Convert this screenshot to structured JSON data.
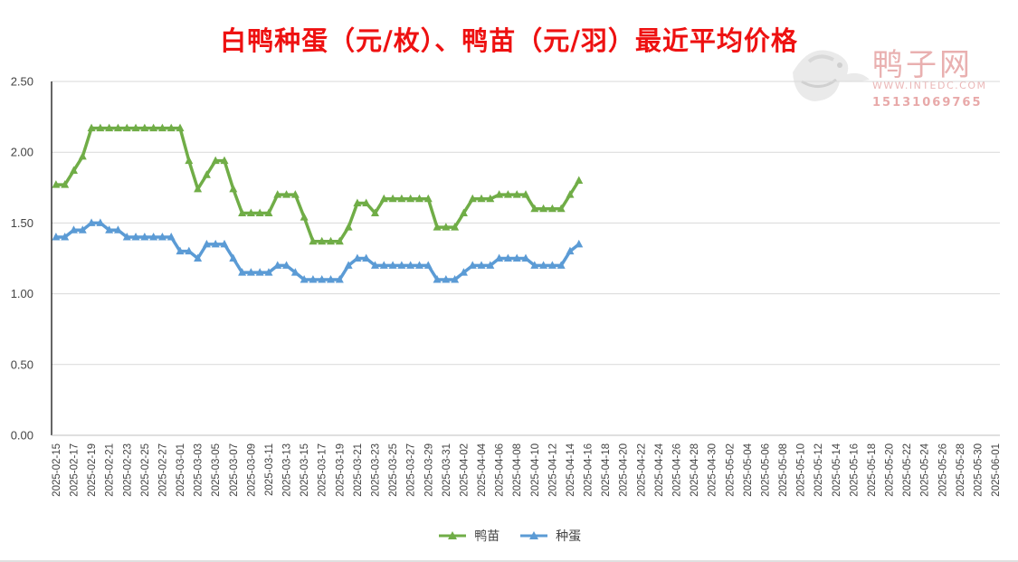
{
  "page": {
    "title": "白鸭种蛋（元/枚）、鸭苗（元/羽）最近平均价格"
  },
  "watermark": {
    "brand": "鸭子网",
    "site": "WWW.INTEDC.COM",
    "phone": "15131069765"
  },
  "colors": {
    "duckling": "#70ad47",
    "egg": "#5b9bd5",
    "title": "#ee1111"
  },
  "chart_data": {
    "type": "line",
    "title": "白鸭种蛋（元/枚）、鸭苗（元/羽）最近平均价格",
    "xlabel": "",
    "ylabel": "",
    "ylim": [
      0,
      2.5
    ],
    "y_ticks": [
      "0.00",
      "0.50",
      "1.00",
      "1.50",
      "2.00",
      "2.50"
    ],
    "grid": "horizontal",
    "legend_position": "bottom",
    "x_start": "2025-02-15",
    "x_end": "2025-06-01",
    "x_tick_labels": [
      "2025-02-15",
      "2025-02-17",
      "2025-02-19",
      "2025-02-21",
      "2025-02-23",
      "2025-02-25",
      "2025-02-27",
      "2025-03-01",
      "2025-03-03",
      "2025-03-05",
      "2025-03-07",
      "2025-03-09",
      "2025-03-11",
      "2025-03-13",
      "2025-03-15",
      "2025-03-17",
      "2025-03-19",
      "2025-03-21",
      "2025-03-23",
      "2025-03-25",
      "2025-03-27",
      "2025-03-29",
      "2025-03-31",
      "2025-04-02",
      "2025-04-04",
      "2025-04-06",
      "2025-04-08",
      "2025-04-10",
      "2025-04-12",
      "2025-04-14",
      "2025-04-16",
      "2025-04-18",
      "2025-04-20",
      "2025-04-22",
      "2025-04-24",
      "2025-04-26",
      "2025-04-28",
      "2025-04-30",
      "2025-05-02",
      "2025-05-04",
      "2025-05-06",
      "2025-05-08",
      "2025-05-10",
      "2025-05-12",
      "2025-05-14",
      "2025-05-16",
      "2025-05-18",
      "2025-05-20",
      "2025-05-22",
      "2025-05-24",
      "2025-05-26",
      "2025-05-28",
      "2025-05-30",
      "2025-06-01"
    ],
    "x": [
      "2025-02-15",
      "2025-02-16",
      "2025-02-17",
      "2025-02-18",
      "2025-02-19",
      "2025-02-20",
      "2025-02-21",
      "2025-02-22",
      "2025-02-23",
      "2025-02-24",
      "2025-02-25",
      "2025-02-26",
      "2025-02-27",
      "2025-02-28",
      "2025-03-01",
      "2025-03-02",
      "2025-03-03",
      "2025-03-04",
      "2025-03-05",
      "2025-03-06",
      "2025-03-07",
      "2025-03-08",
      "2025-03-09",
      "2025-03-10",
      "2025-03-11",
      "2025-03-12",
      "2025-03-13",
      "2025-03-14",
      "2025-03-15",
      "2025-03-16",
      "2025-03-17",
      "2025-03-18",
      "2025-03-19",
      "2025-03-20",
      "2025-03-21",
      "2025-03-22",
      "2025-03-23",
      "2025-03-24",
      "2025-03-25",
      "2025-03-26",
      "2025-03-27",
      "2025-03-28",
      "2025-03-29",
      "2025-03-30",
      "2025-03-31",
      "2025-04-01",
      "2025-04-02",
      "2025-04-03",
      "2025-04-04",
      "2025-04-05",
      "2025-04-06",
      "2025-04-07",
      "2025-04-08",
      "2025-04-09",
      "2025-04-10",
      "2025-04-11",
      "2025-04-12",
      "2025-04-13",
      "2025-04-14",
      "2025-04-15"
    ],
    "series": [
      {
        "name": "鸭苗",
        "color": "#70ad47",
        "values": [
          1.77,
          1.77,
          1.87,
          1.97,
          2.17,
          2.17,
          2.17,
          2.17,
          2.17,
          2.17,
          2.17,
          2.17,
          2.17,
          2.17,
          2.17,
          1.94,
          1.74,
          1.84,
          1.94,
          1.94,
          1.74,
          1.57,
          1.57,
          1.57,
          1.57,
          1.7,
          1.7,
          1.7,
          1.54,
          1.37,
          1.37,
          1.37,
          1.37,
          1.47,
          1.64,
          1.64,
          1.57,
          1.67,
          1.67,
          1.67,
          1.67,
          1.67,
          1.67,
          1.47,
          1.47,
          1.47,
          1.57,
          1.67,
          1.67,
          1.67,
          1.7,
          1.7,
          1.7,
          1.7,
          1.6,
          1.6,
          1.6,
          1.6,
          1.7,
          1.8
        ]
      },
      {
        "name": "种蛋",
        "color": "#5b9bd5",
        "values": [
          1.4,
          1.4,
          1.45,
          1.45,
          1.5,
          1.5,
          1.45,
          1.45,
          1.4,
          1.4,
          1.4,
          1.4,
          1.4,
          1.4,
          1.3,
          1.3,
          1.25,
          1.35,
          1.35,
          1.35,
          1.25,
          1.15,
          1.15,
          1.15,
          1.15,
          1.2,
          1.2,
          1.15,
          1.1,
          1.1,
          1.1,
          1.1,
          1.1,
          1.2,
          1.25,
          1.25,
          1.2,
          1.2,
          1.2,
          1.2,
          1.2,
          1.2,
          1.2,
          1.1,
          1.1,
          1.1,
          1.15,
          1.2,
          1.2,
          1.2,
          1.25,
          1.25,
          1.25,
          1.25,
          1.2,
          1.2,
          1.2,
          1.2,
          1.3,
          1.35
        ]
      }
    ]
  }
}
